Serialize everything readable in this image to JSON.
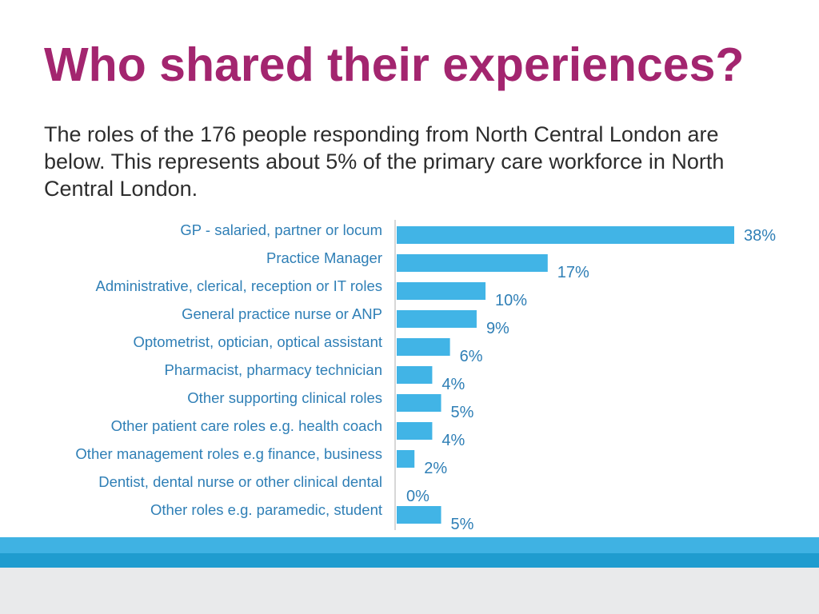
{
  "slide": {
    "title": "Who shared their experiences?",
    "subtitle": "The roles of the 176 people responding from North Central London are below. This represents about 5% of the primary care workforce in North Central London."
  },
  "colors": {
    "title": "#a3256f",
    "bar": "#41b4e6",
    "label": "#2f7fb6",
    "value": "#2f7fb6",
    "axis": "#d7d7d7",
    "footer_light": "#3fb2e3",
    "footer_dark": "#1f9ccf",
    "footer_grey": "#e9eaeb"
  },
  "chart_data": {
    "type": "bar",
    "orientation": "horizontal",
    "categories": [
      "GP - salaried, partner or locum",
      "Practice Manager",
      "Administrative, clerical, reception or IT roles",
      "General practice nurse or ANP",
      "Optometrist, optician, optical assistant",
      "Pharmacist, pharmacy technician",
      "Other supporting clinical roles",
      "Other patient care roles e.g. health coach",
      "Other management roles e.g finance, business",
      "Dentist, dental nurse or other clinical dental",
      "Other roles e.g. paramedic, student"
    ],
    "values": [
      38,
      17,
      10,
      9,
      6,
      4,
      5,
      4,
      2,
      0,
      5
    ],
    "value_labels": [
      "38%",
      "17%",
      "10%",
      "9%",
      "6%",
      "4%",
      "5%",
      "4%",
      "2%",
      "0%",
      "5%"
    ],
    "unit": "%",
    "xlim": [
      0,
      38
    ],
    "grid": false,
    "legend": "none"
  }
}
